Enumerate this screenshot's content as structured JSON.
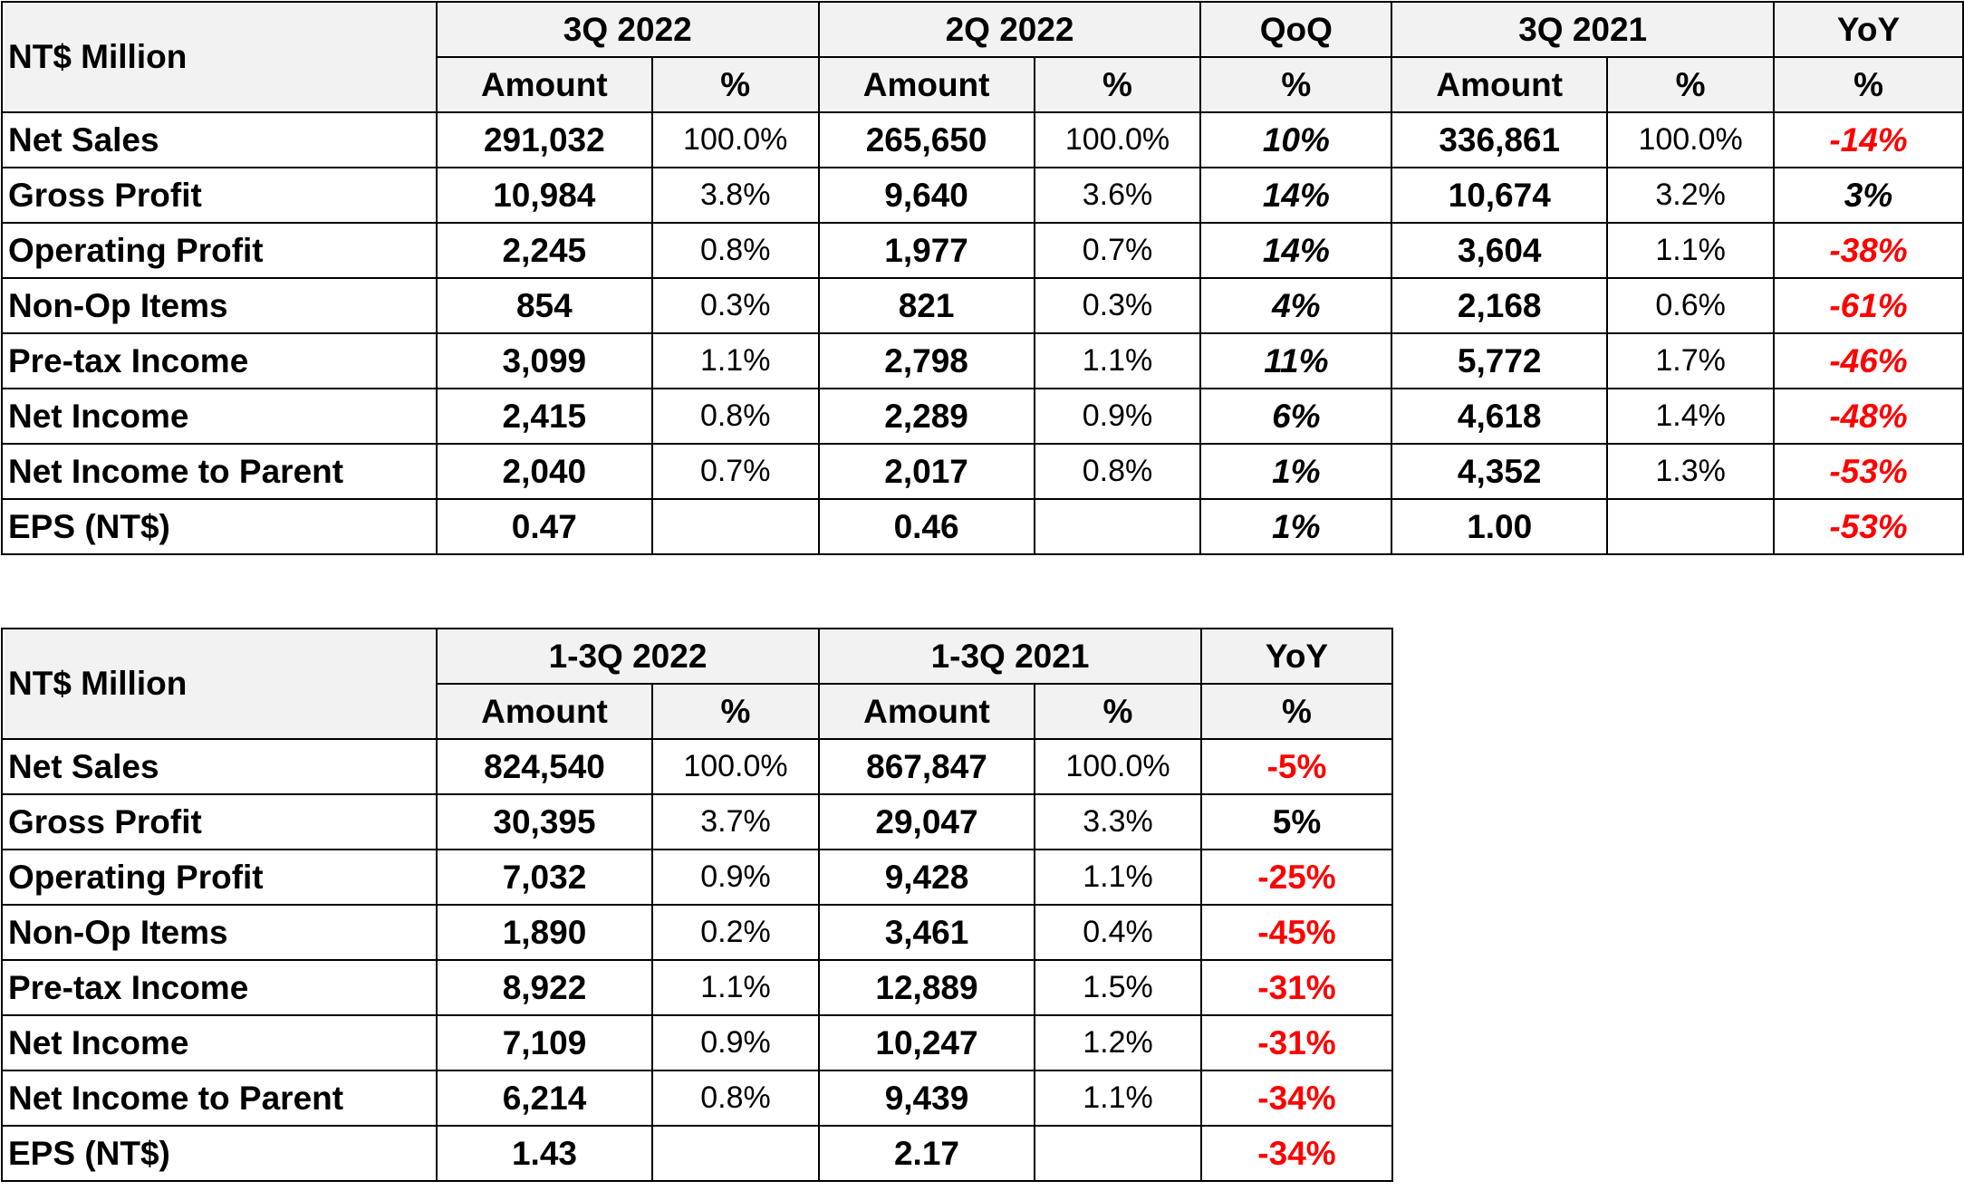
{
  "quarterly": {
    "corner_label": "NT$ Million",
    "groups": [
      "3Q 2022",
      "2Q 2022",
      "QoQ",
      "3Q 2021",
      "YoY"
    ],
    "subheaders": [
      "Amount",
      "%",
      "Amount",
      "%",
      "%",
      "Amount",
      "%",
      "%"
    ],
    "rows": [
      {
        "label": "Net Sales",
        "cells": [
          "291,032",
          "100.0%",
          "265,650",
          "100.0%",
          "10%",
          "336,861",
          "100.0%",
          "-14%"
        ],
        "qoq_negative": false,
        "yoy_negative": true
      },
      {
        "label": "Gross Profit",
        "cells": [
          "10,984",
          "3.8%",
          "9,640",
          "3.6%",
          "14%",
          "10,674",
          "3.2%",
          "3%"
        ],
        "qoq_negative": false,
        "yoy_negative": false
      },
      {
        "label": "Operating Profit",
        "cells": [
          "2,245",
          "0.8%",
          "1,977",
          "0.7%",
          "14%",
          "3,604",
          "1.1%",
          "-38%"
        ],
        "qoq_negative": false,
        "yoy_negative": true
      },
      {
        "label": "Non-Op Items",
        "cells": [
          "854",
          "0.3%",
          "821",
          "0.3%",
          "4%",
          "2,168",
          "0.6%",
          "-61%"
        ],
        "qoq_negative": false,
        "yoy_negative": true
      },
      {
        "label": "Pre-tax Income",
        "cells": [
          "3,099",
          "1.1%",
          "2,798",
          "1.1%",
          "11%",
          "5,772",
          "1.7%",
          "-46%"
        ],
        "qoq_negative": false,
        "yoy_negative": true
      },
      {
        "label": "Net Income",
        "cells": [
          "2,415",
          "0.8%",
          "2,289",
          "0.9%",
          "6%",
          "4,618",
          "1.4%",
          "-48%"
        ],
        "qoq_negative": false,
        "yoy_negative": true
      },
      {
        "label": "Net Income to Parent",
        "cells": [
          "2,040",
          "0.7%",
          "2,017",
          "0.8%",
          "1%",
          "4,352",
          "1.3%",
          "-53%"
        ],
        "qoq_negative": false,
        "yoy_negative": true
      },
      {
        "label": "EPS (NT$)",
        "cells": [
          "0.47",
          "",
          "0.46",
          "",
          "1%",
          "1.00",
          "",
          "-53%"
        ],
        "qoq_negative": false,
        "yoy_negative": true
      }
    ]
  },
  "ytd": {
    "corner_label": "NT$ Million",
    "groups": [
      "1-3Q 2022",
      "1-3Q 2021",
      "YoY"
    ],
    "subheaders": [
      "Amount",
      "%",
      "Amount",
      "%",
      "%"
    ],
    "rows": [
      {
        "label": "Net Sales",
        "cells": [
          "824,540",
          "100.0%",
          "867,847",
          "100.0%",
          "-5%"
        ],
        "yoy_negative": true
      },
      {
        "label": "Gross Profit",
        "cells": [
          "30,395",
          "3.7%",
          "29,047",
          "3.3%",
          "5%"
        ],
        "yoy_negative": false
      },
      {
        "label": "Operating Profit",
        "cells": [
          "7,032",
          "0.9%",
          "9,428",
          "1.1%",
          "-25%"
        ],
        "yoy_negative": true
      },
      {
        "label": "Non-Op Items",
        "cells": [
          "1,890",
          "0.2%",
          "3,461",
          "0.4%",
          "-45%"
        ],
        "yoy_negative": true
      },
      {
        "label": "Pre-tax Income",
        "cells": [
          "8,922",
          "1.1%",
          "12,889",
          "1.5%",
          "-31%"
        ],
        "yoy_negative": true
      },
      {
        "label": "Net Income",
        "cells": [
          "7,109",
          "0.9%",
          "10,247",
          "1.2%",
          "-31%"
        ],
        "yoy_negative": true
      },
      {
        "label": "Net Income to Parent",
        "cells": [
          "6,214",
          "0.8%",
          "9,439",
          "1.1%",
          "-34%"
        ],
        "yoy_negative": true
      },
      {
        "label": "EPS (NT$)",
        "cells": [
          "1.43",
          "",
          "2.17",
          "",
          "-34%"
        ],
        "yoy_negative": true
      }
    ]
  },
  "colors": {
    "negative": "#ff0000",
    "header_background": "#f2f2f2",
    "border": "#000000"
  }
}
